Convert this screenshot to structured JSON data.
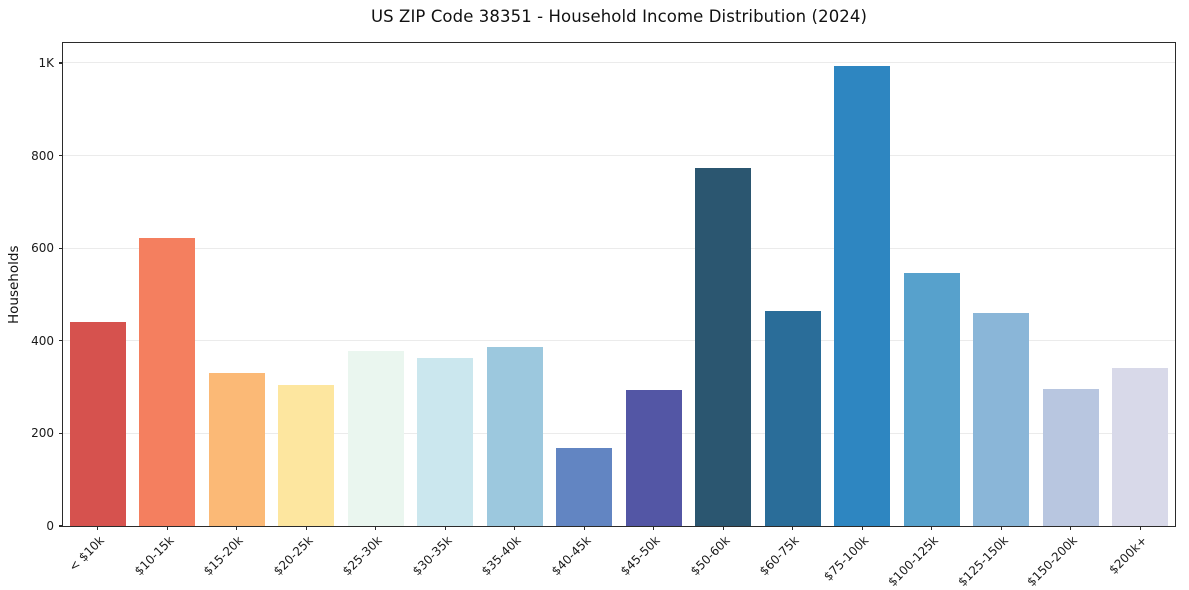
{
  "chart_data": {
    "type": "bar",
    "title": "US ZIP Code 38351 - Household Income Distribution (2024)",
    "xlabel": "",
    "ylabel": "Households",
    "categories": [
      "< $10k",
      "$10-15k",
      "$15-20k",
      "$20-25k",
      "$25-30k",
      "$30-35k",
      "$35-40k",
      "$40-45k",
      "$45-50k",
      "$50-60k",
      "$60-75k",
      "$75-100k",
      "$100-125k",
      "$125-150k",
      "$150-200k",
      "$200k+"
    ],
    "values": [
      440,
      622,
      330,
      305,
      378,
      362,
      387,
      168,
      293,
      773,
      465,
      993,
      546,
      460,
      295,
      342
    ],
    "bar_colors": [
      "#d6524e",
      "#f47f5f",
      "#fbb976",
      "#fde69f",
      "#eaf6ef",
      "#cbe7ee",
      "#9cc8de",
      "#6285c2",
      "#5356a5",
      "#2b5670",
      "#2a6d99",
      "#2e86c1",
      "#57a1cc",
      "#8ab6d8",
      "#b8c6e0",
      "#d8d9e9"
    ],
    "bar_width_fraction": 0.8,
    "ylim": [
      0,
      1043
    ],
    "yticks": [
      0,
      200,
      400,
      600,
      800,
      1000
    ],
    "ytick_labels": [
      "0",
      "200",
      "400",
      "600",
      "800",
      "1K"
    ],
    "grid": true,
    "legend": null
  }
}
